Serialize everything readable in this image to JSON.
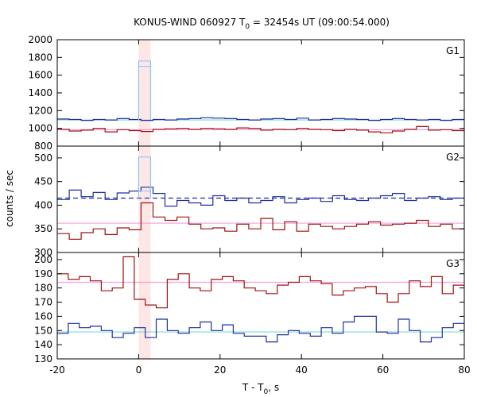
{
  "chart_data": {
    "type": "line",
    "title": "KONUS-WIND 060927 T",
    "title_sub": "0",
    "title_rest": " = 32454s UT (09:00:54.000)",
    "xlabel": "T - T",
    "xlabel_sub": "0",
    "xlabel_rest": ", s",
    "ylabel": "counts / sec",
    "xlim": [
      -20,
      80
    ],
    "x_ticks": [
      -20,
      0,
      20,
      40,
      60,
      80
    ],
    "highlight": {
      "x0": 0,
      "x1": 2.944,
      "color": "#fde6e6"
    },
    "panels": [
      {
        "label": "G1",
        "ylim": [
          800,
          2000
        ],
        "y_ticks": [
          800,
          1000,
          1200,
          1400,
          1600,
          1800,
          2000
        ],
        "hlines": [
          {
            "y": 1095,
            "color": "#7fd8d8"
          },
          {
            "y": 985,
            "color": "#f0a0d8"
          }
        ],
        "spike": {
          "x0": 0,
          "x1": 2.944,
          "top": 1760,
          "top2": 1700,
          "color": "#88c8f0"
        },
        "series": [
          {
            "name": "blue",
            "color": "#1f2fa0",
            "values": [
              1105,
              1100,
              1090,
              1100,
              1095,
              1110,
              1100,
              1090,
              1100,
              1095,
              1105,
              1110,
              1120,
              1115,
              1110,
              1100,
              1095,
              1105,
              1110,
              1100,
              1115,
              1095,
              1100,
              1110,
              1105,
              1100,
              1090,
              1100,
              1110,
              1100,
              1095,
              1100,
              1090,
              1100
            ]
          },
          {
            "name": "red",
            "color": "#a01010",
            "values": [
              990,
              970,
              980,
              1000,
              960,
              985,
              975,
              965,
              990,
              995,
              1000,
              990,
              1000,
              995,
              990,
              1005,
              1000,
              980,
              990,
              985,
              1000,
              990,
              985,
              975,
              990,
              980,
              960,
              950,
              970,
              990,
              1020,
              980,
              985,
              975
            ]
          }
        ]
      },
      {
        "label": "G2",
        "ylim": [
          300,
          525
        ],
        "y_ticks": [
          300,
          350,
          400,
          450,
          500
        ],
        "hlines": [
          {
            "y": 415,
            "color": "#1f2fa0",
            "dash": "6,4"
          },
          {
            "y": 362,
            "color": "#f0a0d8"
          }
        ],
        "spike": {
          "x0": 0,
          "x1": 2.944,
          "top": 502,
          "top2": 430,
          "color": "#88c8f0"
        },
        "series": [
          {
            "name": "blue",
            "color": "#1f2fa0",
            "values": [
              412,
              432,
              418,
              427,
              412,
              426,
              430,
              438,
              425,
              398,
              410,
              405,
              400,
              420,
              410,
              415,
              405,
              410,
              418,
              405,
              412,
              415,
              408,
              420,
              412,
              410,
              415,
              420,
              425,
              410,
              415,
              418,
              412,
              415
            ]
          },
          {
            "name": "red",
            "color": "#a01010",
            "values": [
              340,
              328,
              342,
              350,
              338,
              352,
              348,
              405,
              375,
              368,
              375,
              360,
              350,
              352,
              345,
              360,
              350,
              372,
              348,
              365,
              345,
              360,
              355,
              350,
              355,
              360,
              365,
              358,
              360,
              362,
              368,
              355,
              360,
              350
            ]
          }
        ]
      },
      {
        "label": "G3",
        "ylim": [
          130,
          205
        ],
        "y_ticks": [
          130,
          140,
          150,
          160,
          170,
          180,
          190,
          200
        ],
        "hlines": [
          {
            "y": 184,
            "color": "#f0a0d8"
          },
          {
            "y": 149,
            "color": "#7fd8d8"
          }
        ],
        "series": [
          {
            "name": "blue",
            "color": "#1f2fa0",
            "values": [
              148,
              155,
              152,
              153,
              150,
              145,
              148,
              152,
              145,
              158,
              150,
              148,
              152,
              156,
              150,
              154,
              148,
              146,
              146,
              142,
              147,
              150,
              148,
              146,
              152,
              148,
              156,
              160,
              160,
              149,
              148,
              158,
              150,
              142,
              145,
              152,
              155
            ]
          },
          {
            "name": "red",
            "color": "#a01010",
            "values": [
              190,
              186,
              188,
              185,
              178,
              180,
              202,
              172,
              168,
              166,
              186,
              190,
              180,
              178,
              186,
              188,
              185,
              180,
              178,
              176,
              182,
              184,
              188,
              185,
              183,
              175,
              178,
              180,
              181,
              176,
              170,
              176,
              185,
              181,
              188,
              176,
              182
            ]
          }
        ]
      }
    ]
  }
}
